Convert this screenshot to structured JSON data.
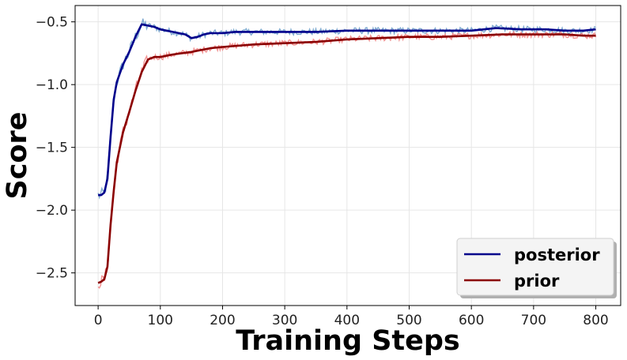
{
  "chart_data": {
    "type": "line",
    "xlabel": "Training Steps",
    "ylabel": "Score",
    "xlim": [
      -37,
      840
    ],
    "ylim": [
      -2.76,
      -0.37
    ],
    "xticks": [
      0,
      100,
      200,
      300,
      400,
      500,
      600,
      700,
      800
    ],
    "xtick_labels": [
      "0",
      "100",
      "200",
      "300",
      "400",
      "500",
      "600",
      "700",
      "800"
    ],
    "yticks": [
      -0.5,
      -1.0,
      -1.5,
      -2.0,
      -2.5
    ],
    "ytick_labels": [
      "−0.5",
      "−1.0",
      "−1.5",
      "−2.0",
      "−2.5"
    ],
    "grid": true,
    "legend_position": "lower-right",
    "series": [
      {
        "name": "posterior",
        "color": "#00008b",
        "raw_color": "#6a9bc9",
        "x": [
          0,
          5,
          10,
          15,
          20,
          25,
          30,
          40,
          50,
          60,
          70,
          80,
          90,
          100,
          110,
          120,
          130,
          140,
          150,
          160,
          170,
          180,
          200,
          220,
          250,
          300,
          350,
          400,
          450,
          500,
          550,
          600,
          640,
          680,
          700,
          720,
          750,
          780,
          800
        ],
        "y": [
          -1.88,
          -1.88,
          -1.86,
          -1.75,
          -1.42,
          -1.12,
          -0.98,
          -0.84,
          -0.74,
          -0.62,
          -0.52,
          -0.53,
          -0.54,
          -0.56,
          -0.57,
          -0.58,
          -0.59,
          -0.6,
          -0.63,
          -0.62,
          -0.6,
          -0.59,
          -0.59,
          -0.58,
          -0.58,
          -0.58,
          -0.58,
          -0.57,
          -0.57,
          -0.57,
          -0.57,
          -0.57,
          -0.55,
          -0.56,
          -0.56,
          -0.56,
          -0.57,
          -0.57,
          -0.56
        ]
      },
      {
        "name": "prior",
        "color": "#8b0000",
        "raw_color": "#f08080",
        "x": [
          0,
          5,
          10,
          15,
          20,
          25,
          30,
          40,
          50,
          60,
          70,
          80,
          90,
          100,
          120,
          150,
          180,
          200,
          250,
          300,
          350,
          400,
          450,
          500,
          550,
          600,
          650,
          700,
          750,
          780,
          800
        ],
        "y": [
          -2.58,
          -2.57,
          -2.55,
          -2.45,
          -2.12,
          -1.85,
          -1.62,
          -1.38,
          -1.22,
          -1.05,
          -0.9,
          -0.8,
          -0.78,
          -0.78,
          -0.76,
          -0.74,
          -0.71,
          -0.7,
          -0.68,
          -0.67,
          -0.66,
          -0.64,
          -0.63,
          -0.62,
          -0.62,
          -0.61,
          -0.6,
          -0.6,
          -0.6,
          -0.61,
          -0.61
        ]
      }
    ]
  }
}
